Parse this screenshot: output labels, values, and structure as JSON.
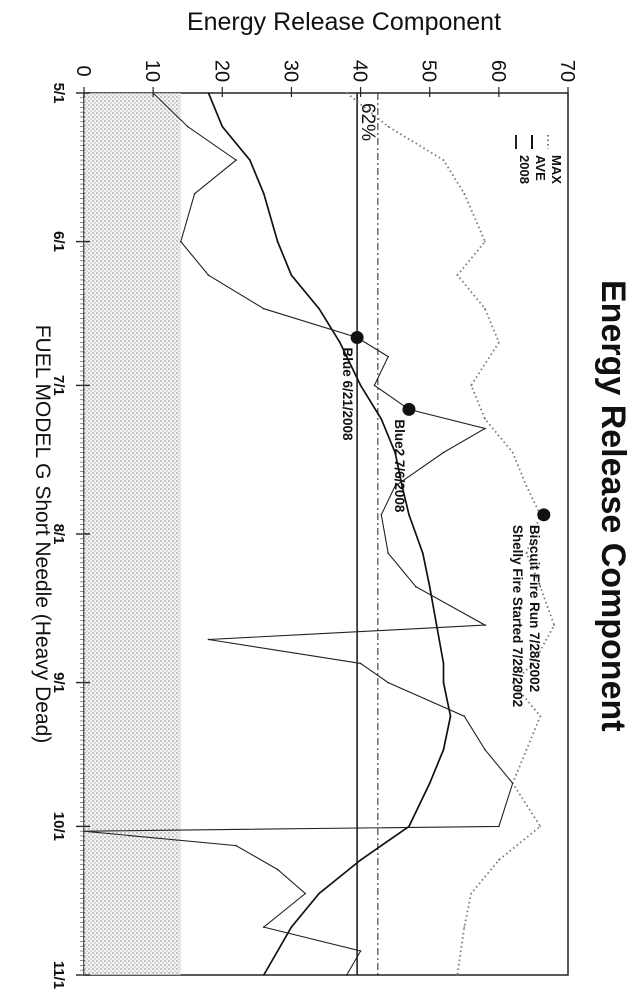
{
  "chart_data": {
    "type": "line",
    "title": "Energy Release Component",
    "clipped_title_fragment": "Energy Release Component",
    "xlabel": "FUEL MODEL G Short Needle (Heavy Dead)",
    "ylabel": "",
    "ylim": [
      0,
      70
    ],
    "y_ticks": [
      0,
      10,
      20,
      30,
      40,
      50,
      60,
      70
    ],
    "x_ticks": [
      "5/1",
      "6/1",
      "7/1",
      "8/1",
      "9/1",
      "10/1",
      "11/1"
    ],
    "x_domain": [
      "5/1",
      "11/1"
    ],
    "orientation": "rotated 90° clockwise (value axis runs along top edge)",
    "legend": {
      "placement": "top-right",
      "entries": [
        "MAX",
        "AVE",
        "2008"
      ]
    },
    "reference_lines": [
      {
        "label": "62%",
        "value": 39.5,
        "style": "solid"
      },
      {
        "label": "",
        "value": 42.5,
        "style": "dash-dot"
      }
    ],
    "annotations": [
      {
        "label": "Biscuit Fire Run 7/28/2002",
        "date": "7/28",
        "value": 66.5
      },
      {
        "label": "Shelly Fire Started 7/28/2002",
        "date": "7/28",
        "value": 66.5
      },
      {
        "label": "Blue2 7/6/2008",
        "date": "7/6",
        "value": 47
      },
      {
        "label": "Blue 6/21/2008",
        "date": "6/21",
        "value": 39.5
      }
    ],
    "series": [
      {
        "name": "MAX",
        "style": "dotted",
        "points": [
          [
            "5/1",
            38
          ],
          [
            "5/8",
            44
          ],
          [
            "5/15",
            52
          ],
          [
            "5/22",
            55
          ],
          [
            "6/1",
            58
          ],
          [
            "6/8",
            54
          ],
          [
            "6/15",
            58
          ],
          [
            "6/22",
            60
          ],
          [
            "7/1",
            56
          ],
          [
            "7/8",
            58
          ],
          [
            "7/15",
            62
          ],
          [
            "7/22",
            64
          ],
          [
            "7/28",
            66
          ],
          [
            "8/5",
            64
          ],
          [
            "8/12",
            66
          ],
          [
            "8/20",
            68
          ],
          [
            "8/28",
            65
          ],
          [
            "9/1",
            62
          ],
          [
            "9/8",
            66
          ],
          [
            "9/15",
            64
          ],
          [
            "9/22",
            62
          ],
          [
            "10/1",
            66
          ],
          [
            "10/8",
            60
          ],
          [
            "10/15",
            56
          ],
          [
            "10/22",
            55
          ],
          [
            "11/1",
            54
          ]
        ]
      },
      {
        "name": "AVE",
        "style": "solid",
        "points": [
          [
            "5/1",
            18
          ],
          [
            "5/8",
            20
          ],
          [
            "5/15",
            24
          ],
          [
            "5/22",
            26
          ],
          [
            "6/1",
            28
          ],
          [
            "6/8",
            30
          ],
          [
            "6/15",
            34
          ],
          [
            "6/22",
            37
          ],
          [
            "7/1",
            40
          ],
          [
            "7/8",
            43
          ],
          [
            "7/15",
            45
          ],
          [
            "7/22",
            46
          ],
          [
            "7/28",
            47
          ],
          [
            "8/5",
            49
          ],
          [
            "8/12",
            50
          ],
          [
            "8/20",
            51
          ],
          [
            "8/28",
            52
          ],
          [
            "9/1",
            52
          ],
          [
            "9/8",
            53
          ],
          [
            "9/15",
            52
          ],
          [
            "9/22",
            50
          ],
          [
            "10/1",
            47
          ],
          [
            "10/8",
            40
          ],
          [
            "10/15",
            34
          ],
          [
            "10/22",
            30
          ],
          [
            "11/1",
            26
          ]
        ]
      },
      {
        "name": "2008",
        "style": "thin solid",
        "points": [
          [
            "5/1",
            10
          ],
          [
            "5/8",
            15
          ],
          [
            "5/15",
            22
          ],
          [
            "5/22",
            16
          ],
          [
            "6/1",
            14
          ],
          [
            "6/8",
            18
          ],
          [
            "6/15",
            26
          ],
          [
            "6/21",
            39.5
          ],
          [
            "6/25",
            44
          ],
          [
            "7/1",
            42
          ],
          [
            "7/6",
            47
          ],
          [
            "7/10",
            58
          ],
          [
            "7/15",
            52
          ],
          [
            "7/22",
            45
          ],
          [
            "7/28",
            43
          ],
          [
            "8/5",
            44
          ],
          [
            "8/12",
            48
          ],
          [
            "8/20",
            58
          ],
          [
            "8/23",
            18
          ],
          [
            "8/28",
            40
          ],
          [
            "9/1",
            44
          ],
          [
            "9/8",
            55
          ],
          [
            "9/15",
            58
          ],
          [
            "9/22",
            62
          ],
          [
            "10/1",
            60
          ],
          [
            "10/2",
            0
          ],
          [
            "10/5",
            22
          ],
          [
            "10/10",
            28
          ],
          [
            "10/15",
            32
          ],
          [
            "10/22",
            26
          ],
          [
            "10/27",
            40
          ],
          [
            "11/1",
            38
          ]
        ]
      }
    ],
    "percentile_band": {
      "label": "",
      "from": 0,
      "to": 14
    }
  }
}
